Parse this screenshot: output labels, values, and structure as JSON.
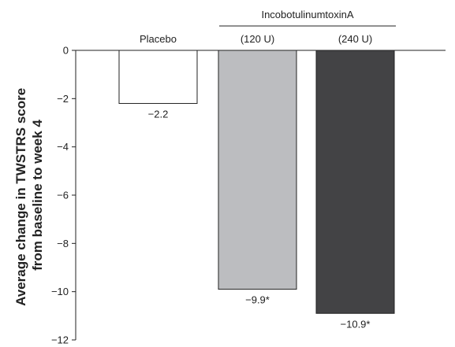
{
  "chart_data": {
    "type": "bar",
    "group_label": "IncobotulinumtoxinA",
    "categories": [
      "Placebo",
      "(120 U)",
      "(240 U)"
    ],
    "values": [
      -2.2,
      -9.9,
      -10.9
    ],
    "value_labels": [
      "−2.2",
      "−9.9*",
      "−10.9*"
    ],
    "colors": [
      "#ffffff",
      "#bcbdc0",
      "#434345"
    ],
    "bar_stroke": "#222222",
    "ylabel_lines": [
      "Average change in TWSTRS score",
      "from baseline to week 4"
    ],
    "xlabel": "",
    "ylim": [
      -12,
      0
    ],
    "yticks": [
      0,
      -2,
      -4,
      -6,
      -8,
      -10,
      -12
    ],
    "ytick_labels": [
      "0",
      "−2",
      "−4",
      "−6",
      "−8",
      "−10",
      "−12"
    ],
    "grid": false,
    "legend": "none"
  }
}
